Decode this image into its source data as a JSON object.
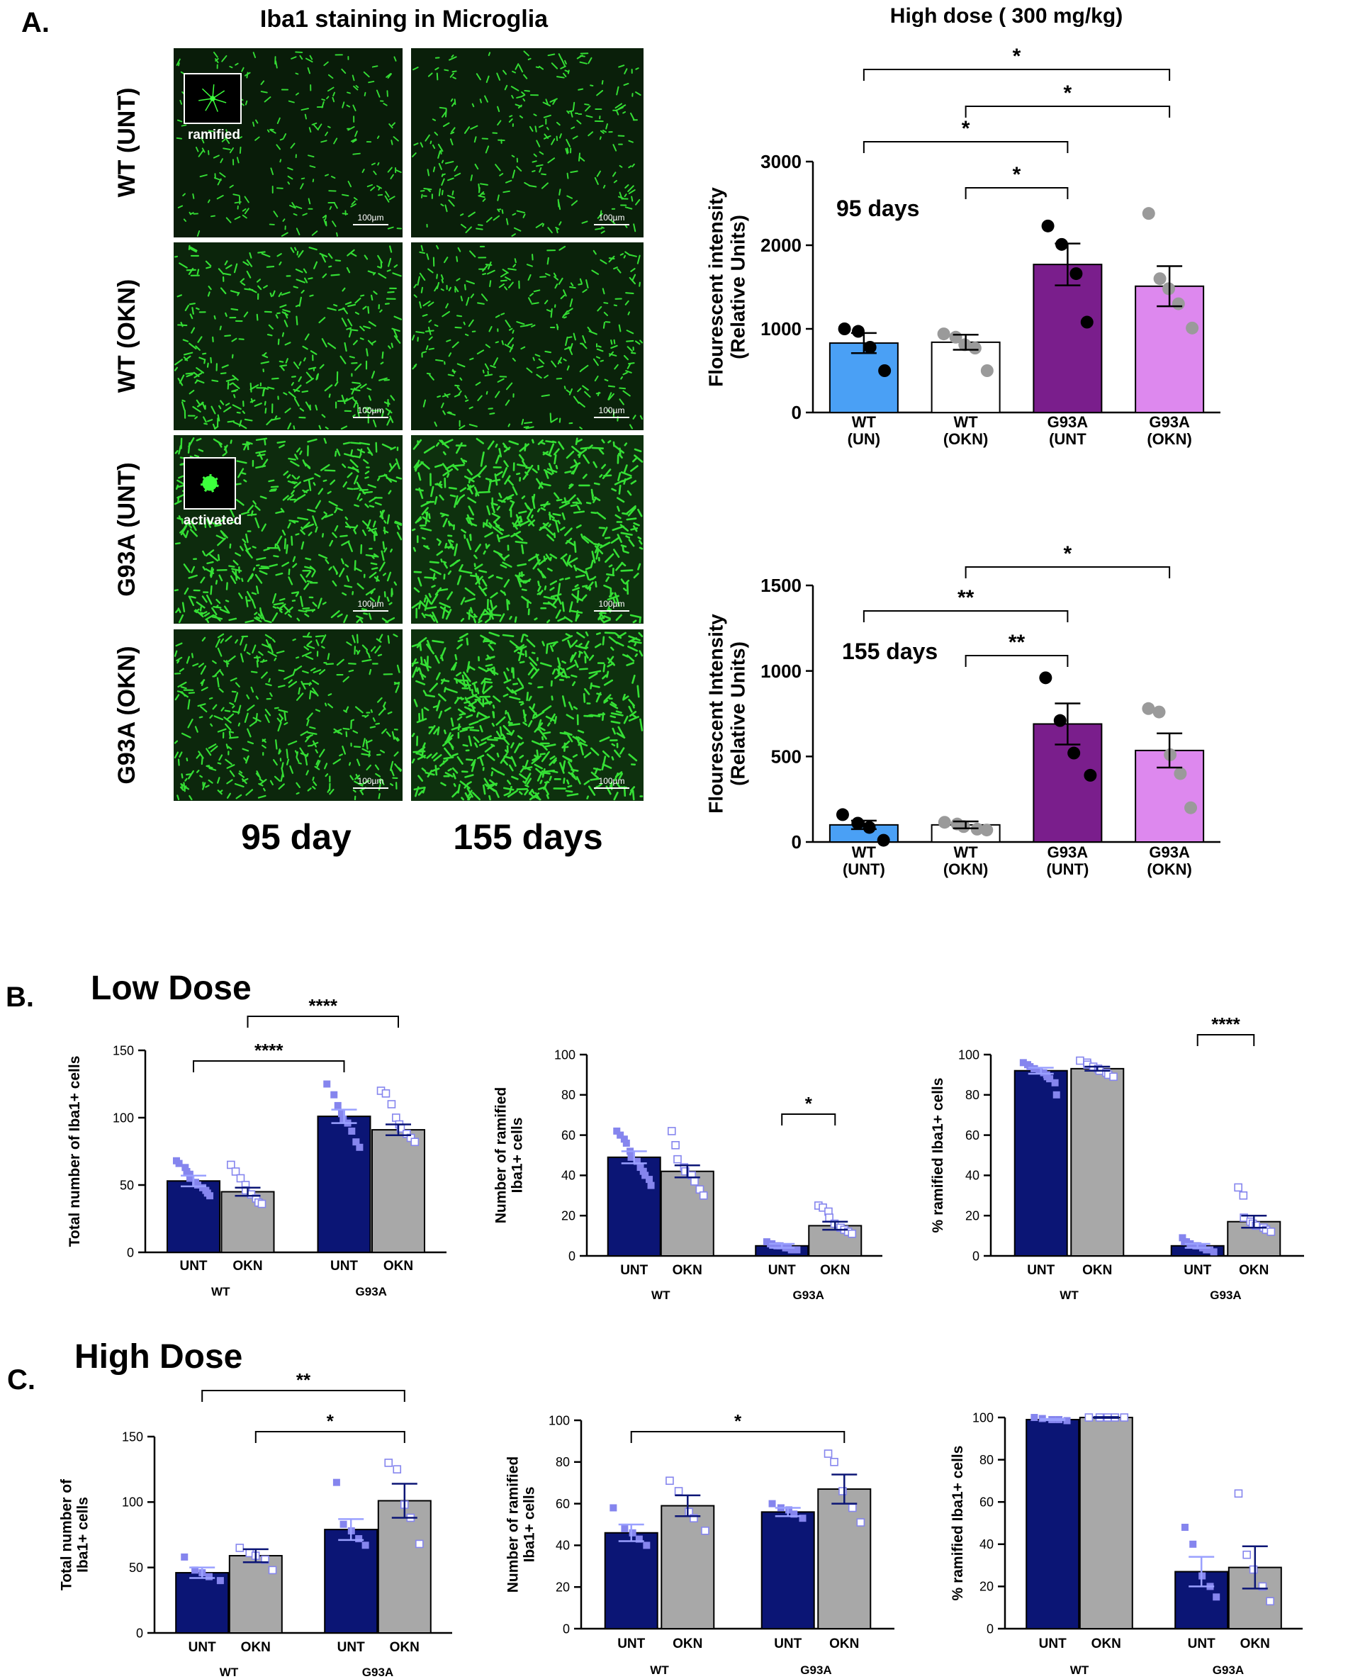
{
  "panels": {
    "A": "A.",
    "B": "B.",
    "C": "C."
  },
  "micrograph": {
    "title": "Iba1 staining in Microglia",
    "row_labels": [
      "WT (UNT)",
      "WT (OKN)",
      "G93A (UNT)",
      "G93A (OKN)"
    ],
    "col_labels": [
      "95 day",
      "155 days"
    ],
    "scale_bar": "100µm",
    "insets": [
      "ramified",
      "activated"
    ],
    "density": [
      [
        0.28,
        0.38
      ],
      [
        0.55,
        0.45
      ],
      [
        0.8,
        1.0
      ],
      [
        0.62,
        1.0
      ]
    ]
  },
  "colors": {
    "wt_unt": "#4aa0f5",
    "wt_okn": "#ffffff",
    "g93a_unt": "#7a1e8c",
    "g93a_okn": "#dd88ee",
    "navy": "#0b1575",
    "gray": "#a8a8a8",
    "dot_light": "#8585ee",
    "green": "#3cff3c"
  },
  "section_titles": {
    "low": "Low Dose",
    "high": "High Dose",
    "high_dose_header": "High dose ( 300 mg/kg)"
  },
  "chart_data": [
    {
      "id": "A95",
      "type": "bar",
      "annotation": "95 days",
      "ylabel": "Flourescent intensity\n(Relative Units)",
      "ylim": [
        0,
        3000
      ],
      "yticks": [
        0,
        1000,
        2000,
        3000
      ],
      "categories": [
        "WT\n(UN)",
        "WT\n(OKN)",
        "G93A\n(UNT",
        "G93A\n(OKN)"
      ],
      "values": [
        830,
        840,
        1770,
        1510
      ],
      "sem": [
        120,
        90,
        250,
        240
      ],
      "points": [
        [
          1000,
          970,
          780,
          500
        ],
        [
          940,
          900,
          810,
          770,
          500
        ],
        [
          2230,
          2010,
          1660,
          1080
        ],
        [
          2380,
          1600,
          1480,
          1300,
          1010
        ]
      ],
      "sig": [
        {
          "a": 0,
          "b": 3,
          "label": "*"
        },
        {
          "a": 1,
          "b": 3,
          "label": "*"
        },
        {
          "a": 0,
          "b": 2,
          "label": "*"
        },
        {
          "a": 1,
          "b": 2,
          "label": "*"
        }
      ]
    },
    {
      "id": "A155",
      "type": "bar",
      "annotation": "155 days",
      "ylabel": "Flourescent Intensity\n(Relative Units)",
      "ylim": [
        0,
        1500
      ],
      "yticks": [
        0,
        500,
        1000,
        1500
      ],
      "categories": [
        "WT\n(UNT)",
        "WT\n(OKN)",
        "G93A\n(UNT)",
        "G93A\n(OKN)"
      ],
      "values": [
        100,
        100,
        690,
        535
      ],
      "sem": [
        25,
        20,
        120,
        100
      ],
      "points": [
        [
          160,
          110,
          85,
          10
        ],
        [
          115,
          105,
          90,
          75,
          70
        ],
        [
          960,
          710,
          520,
          390
        ],
        [
          780,
          760,
          510,
          400,
          200
        ]
      ],
      "sig": [
        {
          "a": 1,
          "b": 3,
          "label": "*"
        },
        {
          "a": 0,
          "b": 2,
          "label": "**"
        },
        {
          "a": 1,
          "b": 2,
          "label": "**"
        }
      ]
    },
    {
      "id": "B1",
      "type": "bar",
      "ylabel": "Total number of Iba1+ cells",
      "ylim": [
        0,
        150
      ],
      "yticks": [
        0,
        50,
        100,
        150
      ],
      "categories": [
        "UNT",
        "OKN",
        "UNT",
        "OKN"
      ],
      "groups": [
        "WT",
        "G93A"
      ],
      "values": [
        53,
        45,
        101,
        91
      ],
      "sem": [
        4,
        3,
        5,
        4
      ],
      "points": [
        [
          68,
          66,
          63,
          60,
          58,
          55,
          52,
          50,
          48,
          46,
          44,
          42
        ],
        [
          65,
          60,
          55,
          50,
          46,
          43,
          40,
          37,
          36
        ],
        [
          125,
          117,
          109,
          103,
          99,
          96,
          90,
          82,
          78
        ],
        [
          120,
          118,
          110,
          100,
          95,
          92,
          88,
          85,
          82
        ]
      ],
      "sig": [
        {
          "a": 1,
          "b": 3,
          "label": "****"
        },
        {
          "a": 0,
          "b": 2,
          "label": "****"
        }
      ]
    },
    {
      "id": "B2",
      "type": "bar",
      "ylabel": "Number of  ramified\nIba1+ cells",
      "ylim": [
        0,
        100
      ],
      "yticks": [
        0,
        20,
        40,
        60,
        80,
        100
      ],
      "categories": [
        "UNT",
        "OKN",
        "UNT",
        "OKN"
      ],
      "groups": [
        "WT",
        "G93A"
      ],
      "values": [
        49,
        42,
        5,
        15
      ],
      "sem": [
        3,
        3,
        1,
        2
      ],
      "points": [
        [
          62,
          60,
          58,
          56,
          52,
          49,
          47,
          44,
          42,
          40,
          38,
          35
        ],
        [
          62,
          55,
          48,
          44,
          42,
          40,
          37,
          33,
          30
        ],
        [
          7,
          6,
          6,
          5,
          5,
          4,
          4,
          3,
          3,
          3
        ],
        [
          25,
          24,
          22,
          19,
          16,
          14,
          13,
          12,
          11
        ]
      ],
      "sig": [
        {
          "a": 2,
          "b": 3,
          "label": "*"
        }
      ]
    },
    {
      "id": "B3",
      "type": "bar",
      "ylabel": "% ramified Iba1+ cells",
      "ylim": [
        0,
        100
      ],
      "yticks": [
        0,
        20,
        40,
        60,
        80,
        100
      ],
      "categories": [
        "UNT",
        "OKN",
        "UNT",
        "OKN"
      ],
      "groups": [
        "WT",
        "G93A"
      ],
      "values": [
        92,
        93,
        5,
        17
      ],
      "sem": [
        1.5,
        1,
        1,
        3
      ],
      "points": [
        [
          96,
          95,
          94,
          93,
          93,
          92,
          91,
          90,
          89,
          88,
          86,
          80
        ],
        [
          97,
          96,
          95,
          94,
          93,
          92,
          91,
          90,
          89
        ],
        [
          9,
          7,
          7,
          6,
          5,
          5,
          4,
          3,
          3,
          2
        ],
        [
          34,
          30,
          19,
          17,
          16,
          15,
          14,
          13,
          12
        ]
      ],
      "sig": [
        {
          "a": 2,
          "b": 3,
          "label": "****"
        }
      ]
    },
    {
      "id": "C1",
      "type": "bar",
      "ylabel": "Total number of\nIba1+ cells",
      "ylim": [
        0,
        150
      ],
      "yticks": [
        0,
        50,
        100,
        150
      ],
      "categories": [
        "UNT",
        "OKN",
        "UNT",
        "OKN"
      ],
      "groups": [
        "WT",
        "G93A"
      ],
      "values": [
        46,
        59,
        79,
        101
      ],
      "sem": [
        4,
        5,
        8,
        13
      ],
      "points": [
        [
          58,
          48,
          46,
          43,
          40
        ],
        [
          65,
          61,
          59,
          56,
          48
        ],
        [
          115,
          83,
          78,
          72,
          67
        ],
        [
          130,
          125,
          98,
          88,
          68
        ]
      ],
      "sig": [
        {
          "a": 0,
          "b": 3,
          "label": "**"
        },
        {
          "a": 1,
          "b": 3,
          "label": "*"
        }
      ]
    },
    {
      "id": "C2",
      "type": "bar",
      "ylabel": "Number of ramified\nIba1+ cells",
      "ylim": [
        0,
        100
      ],
      "yticks": [
        0,
        20,
        40,
        60,
        80,
        100
      ],
      "categories": [
        "UNT",
        "OKN",
        "UNT",
        "OKN"
      ],
      "groups": [
        "WT",
        "G93A"
      ],
      "values": [
        46,
        59,
        56,
        67
      ],
      "sem": [
        4,
        5,
        2,
        7
      ],
      "points": [
        [
          58,
          48,
          46,
          43,
          40
        ],
        [
          71,
          66,
          56,
          53,
          47
        ],
        [
          60,
          58,
          57,
          55,
          53
        ],
        [
          84,
          80,
          66,
          58,
          51
        ]
      ],
      "sig": [
        {
          "a": 0,
          "b": 3,
          "label": "*"
        }
      ]
    },
    {
      "id": "C3",
      "type": "bar",
      "ylabel": "% ramified Iba1+ cells",
      "ylim": [
        0,
        100
      ],
      "yticks": [
        0,
        20,
        40,
        60,
        80,
        100
      ],
      "categories": [
        "UNT",
        "OKN",
        "UNT",
        "OKN"
      ],
      "groups": [
        "WT",
        "G93A"
      ],
      "values": [
        99,
        100,
        27,
        29
      ],
      "sem": [
        0.3,
        0.2,
        7,
        10
      ],
      "points": [
        [
          100,
          99.5,
          99,
          99,
          98.5
        ],
        [
          100,
          100,
          100,
          100,
          100
        ],
        [
          48,
          40,
          25,
          20,
          15
        ],
        [
          64,
          35,
          28,
          20,
          13
        ]
      ],
      "sig": []
    }
  ]
}
